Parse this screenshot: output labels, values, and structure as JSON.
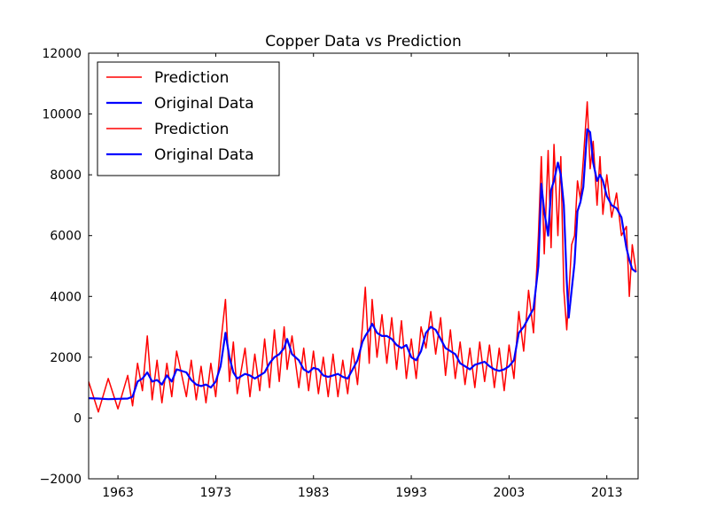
{
  "chart_data": {
    "type": "line",
    "title": "Copper Data vs Prediction",
    "xlabel": "",
    "ylabel": "",
    "xlim": [
      1960.0,
      2016.2
    ],
    "ylim": [
      -2000,
      12000
    ],
    "x_ticks": [
      1963,
      1973,
      1983,
      1993,
      2003,
      2013
    ],
    "x_tick_labels": [
      "1963",
      "1973",
      "1983",
      "1993",
      "2003",
      "2013"
    ],
    "y_ticks": [
      -2000,
      0,
      2000,
      4000,
      6000,
      8000,
      10000,
      12000
    ],
    "y_tick_labels": [
      "−2000",
      "0",
      "2000",
      "4000",
      "6000",
      "8000",
      "10000",
      "12000"
    ],
    "grid": false,
    "legend_position": "top-left",
    "legend": [
      {
        "label": "Prediction",
        "color": "#ff0000"
      },
      {
        "label": "Original Data",
        "color": "#0000ff"
      },
      {
        "label": "Prediction",
        "color": "#ff0000"
      },
      {
        "label": "Original Data",
        "color": "#0000ff"
      }
    ],
    "series": [
      {
        "name": "Original Data",
        "color": "#0000ff",
        "x": [
          1960.0,
          1961.0,
          1962.0,
          1963.0,
          1964.0,
          1964.5,
          1965.0,
          1965.5,
          1966.0,
          1966.5,
          1967.0,
          1967.5,
          1968.0,
          1968.5,
          1969.0,
          1970.0,
          1970.5,
          1971.0,
          1971.5,
          1972.0,
          1972.5,
          1973.0,
          1973.5,
          1974.0,
          1974.4,
          1974.8,
          1975.2,
          1976.0,
          1976.5,
          1977.0,
          1977.5,
          1978.0,
          1978.5,
          1979.0,
          1979.5,
          1980.0,
          1980.3,
          1980.8,
          1981.5,
          1982.0,
          1982.5,
          1983.0,
          1983.5,
          1984.0,
          1984.5,
          1985.0,
          1985.5,
          1986.0,
          1986.5,
          1987.0,
          1987.5,
          1988.0,
          1988.3,
          1988.7,
          1989.0,
          1989.5,
          1990.0,
          1990.5,
          1991.0,
          1991.5,
          1992.0,
          1992.5,
          1993.0,
          1993.5,
          1994.0,
          1994.5,
          1995.0,
          1995.5,
          1996.0,
          1996.5,
          1997.0,
          1997.5,
          1998.0,
          1998.5,
          1999.0,
          1999.5,
          2000.0,
          2000.5,
          2001.0,
          2001.5,
          2002.0,
          2002.5,
          2003.0,
          2003.5,
          2004.0,
          2004.5,
          2005.0,
          2005.5,
          2006.0,
          2006.3,
          2006.6,
          2007.0,
          2007.3,
          2007.6,
          2008.0,
          2008.3,
          2008.6,
          2008.9,
          2009.1,
          2009.4,
          2009.7,
          2010.0,
          2010.3,
          2010.6,
          2011.0,
          2011.3,
          2011.6,
          2012.0,
          2012.3,
          2012.6,
          2013.0,
          2013.5,
          2014.0,
          2014.5,
          2015.0,
          2015.3,
          2015.6,
          2016.0
        ],
        "y": [
          650,
          640,
          620,
          630,
          640,
          700,
          1200,
          1300,
          1500,
          1200,
          1250,
          1100,
          1400,
          1200,
          1600,
          1500,
          1250,
          1100,
          1050,
          1100,
          1000,
          1200,
          1700,
          2800,
          2000,
          1500,
          1300,
          1450,
          1400,
          1300,
          1400,
          1500,
          1800,
          2000,
          2100,
          2300,
          2600,
          2100,
          1900,
          1600,
          1500,
          1650,
          1600,
          1400,
          1350,
          1400,
          1450,
          1350,
          1300,
          1600,
          1900,
          2500,
          2700,
          2900,
          3100,
          2800,
          2700,
          2700,
          2600,
          2400,
          2300,
          2400,
          2000,
          1900,
          2200,
          2800,
          3000,
          2900,
          2600,
          2300,
          2200,
          2100,
          1800,
          1700,
          1600,
          1750,
          1800,
          1850,
          1700,
          1600,
          1550,
          1600,
          1700,
          1900,
          2800,
          3000,
          3300,
          3600,
          5000,
          7700,
          6800,
          6000,
          7500,
          7800,
          8400,
          8000,
          7000,
          4500,
          3300,
          4200,
          5100,
          6800,
          7100,
          7600,
          9500,
          9400,
          8400,
          7800,
          8000,
          7800,
          7300,
          7000,
          6900,
          6600,
          5600,
          5200,
          4900,
          4800
        ]
      },
      {
        "name": "Prediction",
        "color": "#ff0000",
        "x": [
          1960.0,
          1961.0,
          1962.0,
          1963.0,
          1964.0,
          1964.5,
          1965.0,
          1965.5,
          1966.0,
          1966.5,
          1967.0,
          1967.5,
          1968.0,
          1968.5,
          1969.0,
          1970.0,
          1970.5,
          1971.0,
          1971.5,
          1972.0,
          1972.5,
          1973.0,
          1973.5,
          1974.0,
          1974.4,
          1974.8,
          1975.2,
          1976.0,
          1976.5,
          1977.0,
          1977.5,
          1978.0,
          1978.5,
          1979.0,
          1979.5,
          1980.0,
          1980.3,
          1980.8,
          1981.5,
          1982.0,
          1982.5,
          1983.0,
          1983.5,
          1984.0,
          1984.5,
          1985.0,
          1985.5,
          1986.0,
          1986.5,
          1987.0,
          1987.5,
          1988.0,
          1988.3,
          1988.7,
          1989.0,
          1989.5,
          1990.0,
          1990.5,
          1991.0,
          1991.5,
          1992.0,
          1992.5,
          1993.0,
          1993.5,
          1994.0,
          1994.5,
          1995.0,
          1995.5,
          1996.0,
          1996.5,
          1997.0,
          1997.5,
          1998.0,
          1998.5,
          1999.0,
          1999.5,
          2000.0,
          2000.5,
          2001.0,
          2001.5,
          2002.0,
          2002.5,
          2003.0,
          2003.5,
          2004.0,
          2004.5,
          2005.0,
          2005.5,
          2006.0,
          2006.3,
          2006.6,
          2007.0,
          2007.3,
          2007.6,
          2008.0,
          2008.3,
          2008.6,
          2008.9,
          2009.1,
          2009.4,
          2009.7,
          2010.0,
          2010.3,
          2010.6,
          2011.0,
          2011.3,
          2011.6,
          2012.0,
          2012.3,
          2012.6,
          2013.0,
          2013.5,
          2014.0,
          2014.5,
          2015.0,
          2015.3,
          2015.6,
          2016.0
        ],
        "y": [
          1200,
          200,
          1300,
          300,
          1400,
          400,
          1800,
          900,
          2700,
          600,
          1900,
          500,
          1800,
          700,
          2200,
          700,
          1900,
          600,
          1700,
          500,
          1800,
          700,
          2400,
          3900,
          1200,
          2500,
          800,
          2300,
          700,
          2100,
          900,
          2600,
          1000,
          2900,
          1200,
          3000,
          1600,
          2700,
          1000,
          2300,
          900,
          2200,
          800,
          2000,
          700,
          2100,
          700,
          1900,
          800,
          2300,
          1100,
          3000,
          4300,
          1800,
          3900,
          2000,
          3400,
          1800,
          3300,
          1600,
          3200,
          1300,
          2600,
          1300,
          3000,
          2300,
          3500,
          2100,
          3300,
          1400,
          2900,
          1300,
          2500,
          1100,
          2300,
          1000,
          2500,
          1200,
          2400,
          1000,
          2300,
          900,
          2400,
          1300,
          3500,
          2200,
          4200,
          2800,
          6000,
          8600,
          5400,
          8800,
          5600,
          9000,
          6000,
          8600,
          4200,
          2900,
          4000,
          5700,
          6000,
          7800,
          7200,
          8500,
          10400,
          8200,
          9100,
          7000,
          8600,
          6700,
          8000,
          6600,
          7400,
          6000,
          6300,
          4000,
          5700,
          4800
        ]
      }
    ]
  }
}
